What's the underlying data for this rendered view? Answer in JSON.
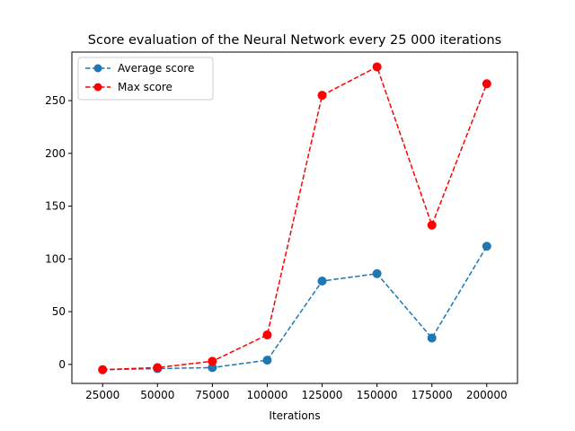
{
  "chart_data": {
    "type": "line",
    "title": "Score evaluation of the Neural Network every 25 000 iterations",
    "xlabel": "Iterations",
    "ylabel": "",
    "x": [
      25000,
      50000,
      75000,
      100000,
      125000,
      150000,
      175000,
      200000
    ],
    "xlim": [
      11000,
      214000
    ],
    "ylim": [
      -18,
      296
    ],
    "xticks": [
      25000,
      50000,
      75000,
      100000,
      125000,
      150000,
      175000,
      200000
    ],
    "yticks": [
      0,
      50,
      100,
      150,
      200,
      250
    ],
    "grid": false,
    "legend_position": "top-left",
    "series": [
      {
        "name": "Average score",
        "color": "#1f77b4",
        "linestyle": "dashed",
        "marker": "circle",
        "values": [
          -5,
          -4,
          -3,
          4,
          79,
          86,
          25,
          112
        ]
      },
      {
        "name": "Max score",
        "color": "#ff0000",
        "linestyle": "dashed",
        "marker": "circle",
        "values": [
          -5,
          -3,
          3,
          28,
          255,
          282,
          132,
          266
        ]
      }
    ]
  }
}
